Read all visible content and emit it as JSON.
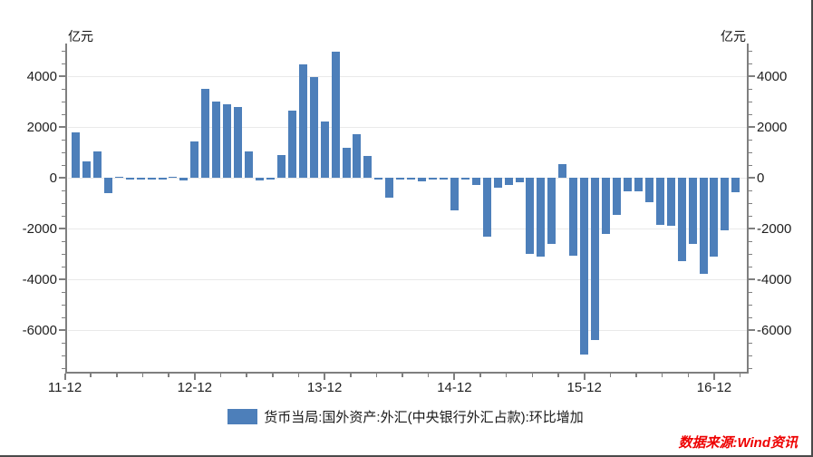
{
  "chart_data": {
    "type": "bar",
    "title": "",
    "unit_label": "亿元",
    "x": [
      "2012-01",
      "2012-02",
      "2012-03",
      "2012-04",
      "2012-05",
      "2012-06",
      "2012-07",
      "2012-08",
      "2012-09",
      "2012-10",
      "2012-11",
      "2012-12",
      "2013-01",
      "2013-02",
      "2013-03",
      "2013-04",
      "2013-05",
      "2013-06",
      "2013-07",
      "2013-08",
      "2013-09",
      "2013-10",
      "2013-11",
      "2013-12",
      "2014-01",
      "2014-02",
      "2014-03",
      "2014-04",
      "2014-05",
      "2014-06",
      "2014-07",
      "2014-08",
      "2014-09",
      "2014-10",
      "2014-11",
      "2014-12",
      "2015-01",
      "2015-02",
      "2015-03",
      "2015-04",
      "2015-05",
      "2015-06",
      "2015-07",
      "2015-08",
      "2015-09",
      "2015-10",
      "2015-11",
      "2015-12",
      "2016-01",
      "2016-02",
      "2016-03",
      "2016-04",
      "2016-05",
      "2016-06",
      "2016-07",
      "2016-08",
      "2016-09",
      "2016-10",
      "2016-11",
      "2016-12",
      "2017-01",
      "2017-02"
    ],
    "series": [
      {
        "name": "货币当局:国外资产:外汇(中央银行外汇占款):环比增加",
        "values": [
          1780,
          640,
          1040,
          -610,
          30,
          -35,
          -40,
          -35,
          -40,
          40,
          -90,
          1440,
          3500,
          3000,
          2880,
          2800,
          1050,
          -110,
          -75,
          910,
          2660,
          4450,
          3950,
          2200,
          4970,
          1180,
          1700,
          860,
          -35,
          -800,
          -30,
          -30,
          -150,
          -35,
          -35,
          -1280,
          -50,
          -290,
          -2310,
          -410,
          -300,
          -180,
          -3000,
          -3100,
          -2600,
          520,
          -3060,
          -6950,
          -6400,
          -2230,
          -1450,
          -550,
          -540,
          -960,
          -1870,
          -1880,
          -3300,
          -2600,
          -3790,
          -3100,
          -2060,
          -560
        ]
      }
    ],
    "x_tick_labels": [
      "11-12",
      "12-12",
      "13-12",
      "14-12",
      "15-12",
      "16-12"
    ],
    "y_ticks": [
      4000,
      2000,
      0,
      -2000,
      -4000,
      -6000
    ],
    "ylim": [
      -7640,
      5290
    ],
    "grid": "horizontal",
    "legend_position": "bottom-center",
    "bar_color": "#4d7fba"
  },
  "legend": {
    "label": "货币当局:国外资产:外汇(中央银行外汇占款):环比增加",
    "swatch_color": "#4d7fba"
  },
  "source_note": {
    "text": "数据来源:Wind资讯",
    "color": "#ee0000"
  }
}
